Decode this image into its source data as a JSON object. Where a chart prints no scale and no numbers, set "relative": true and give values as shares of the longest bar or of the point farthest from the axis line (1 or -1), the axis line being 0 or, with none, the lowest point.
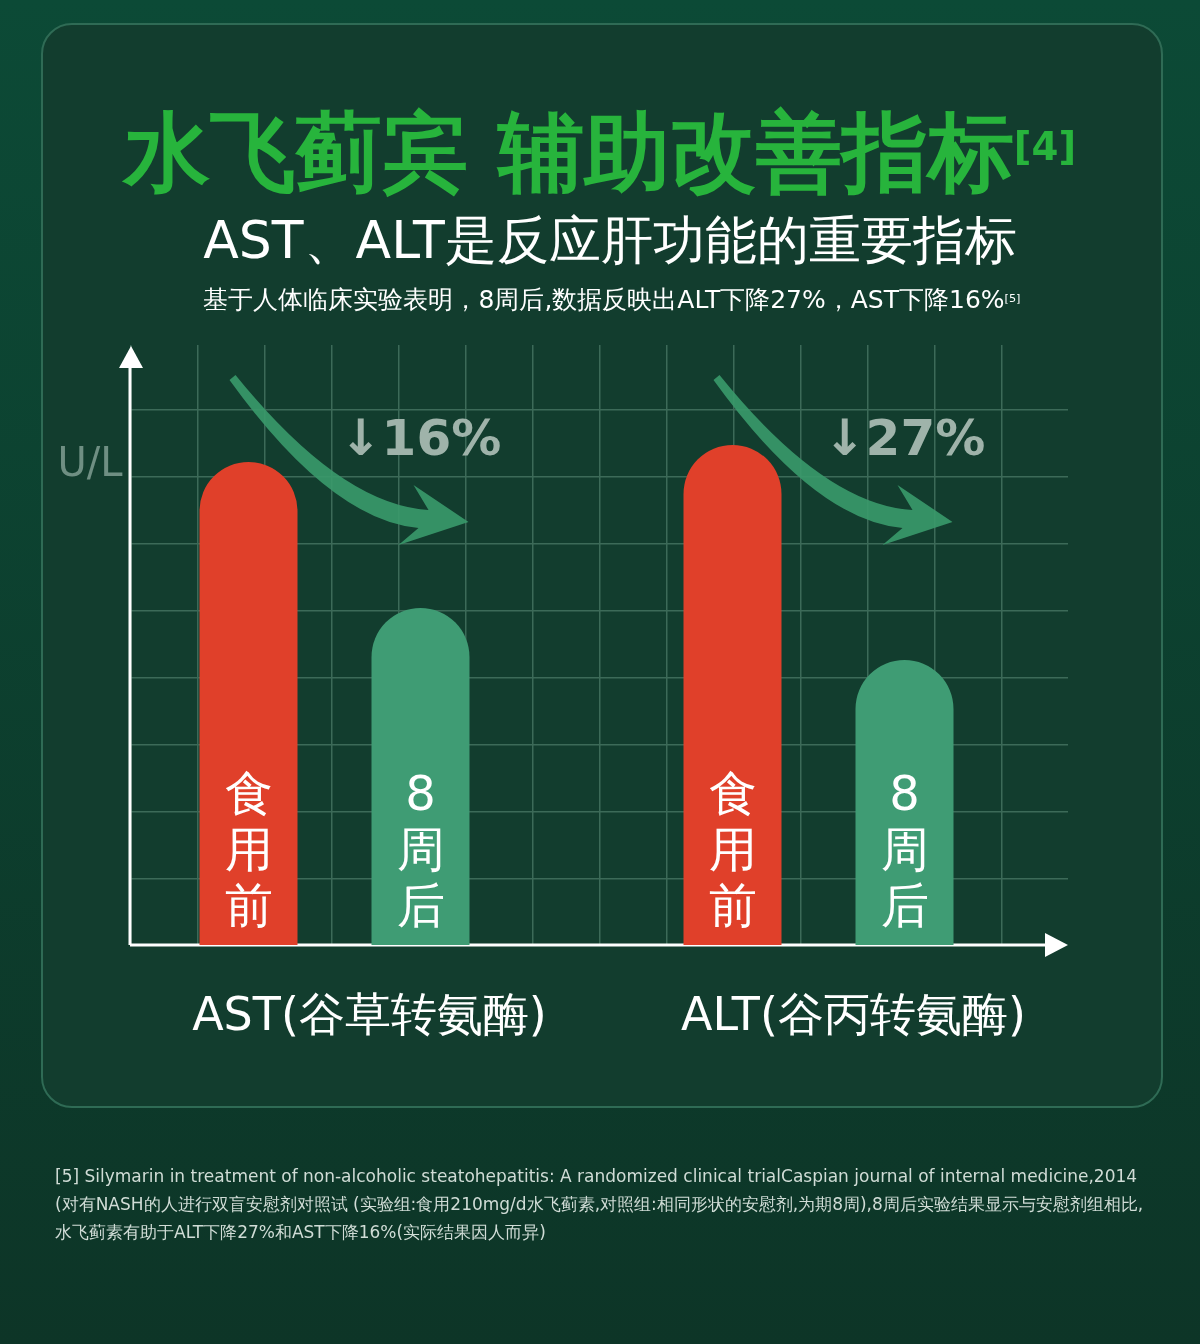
{
  "chart_data": {
    "type": "bar",
    "title": "水飞蓟宾 辅助改善指标$^{[4]}$",
    "subtitle": "AST、ALT是反应肝功能的重要指标",
    "ylabel": "U/L",
    "relative": true,
    "categories": [
      "AST(谷草转氨酶)",
      "ALT(谷丙转氨酶)"
    ],
    "series": [
      {
        "name": "食用前",
        "color": "#e0402a",
        "values": [
          0.966,
          1
        ]
      },
      {
        "name": "8周后",
        "color": "#3f9c74",
        "values": [
          0.674,
          0.57
        ]
      }
    ],
    "annotations": [
      "基于人体临床实验表明，8周后,数据反映出ALT下降27%，AST下降16%$^{[5]}$",
      "↓16%",
      "↓27%",
      "[5] Silymarin in treatment of non-alcoholic steatohepatitis: A randomized clinical trialCaspian journal of internal medicine,2014",
      "(对有NASH的人进行双盲安慰剂对照试 (实验组:食用210mg/d水飞蓟素,对照组:相同形状的安慰剂,为期8周),8周后实验结果显示与安慰剂组相比,",
      "水飞蓟素有助于ALT下降27%和AST下降16%(实际结果因人而异)"
    ]
  }
}
